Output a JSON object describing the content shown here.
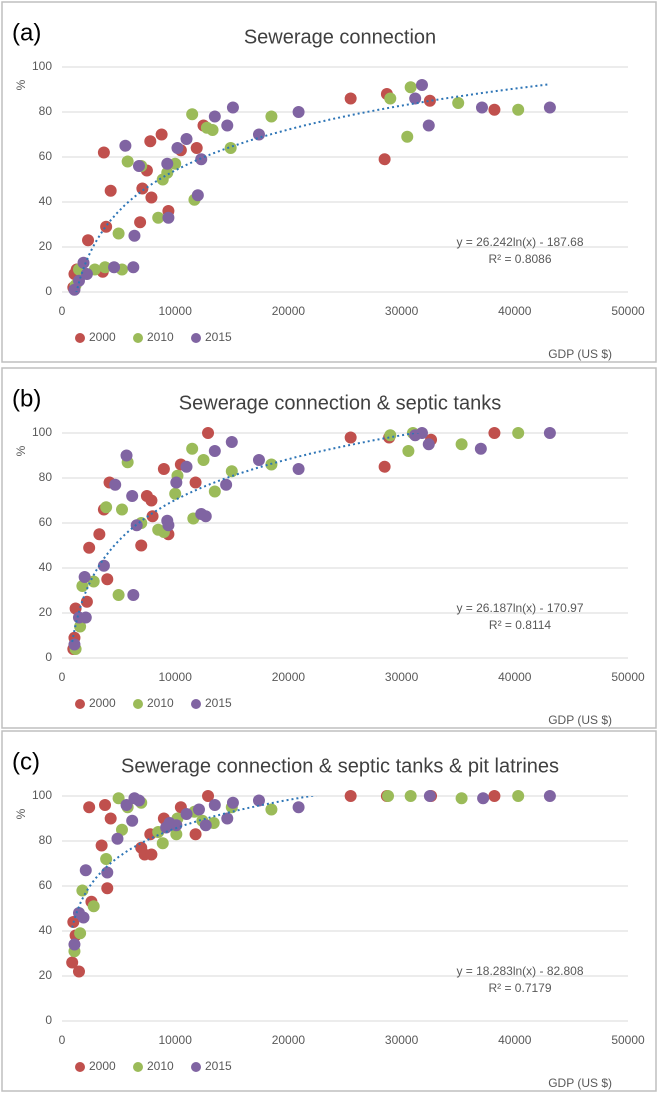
{
  "chart_data": [
    {
      "type": "scatter",
      "panel_label": "(a)",
      "title": "Sewerage connection",
      "y_label": "%",
      "x_label": "GDP (US $)",
      "xlim": [
        0,
        50000
      ],
      "xticks": [
        0,
        10000,
        20000,
        30000,
        40000,
        50000
      ],
      "ylim": [
        0,
        100
      ],
      "yticks": [
        0,
        20,
        40,
        60,
        80,
        100
      ],
      "grid": true,
      "series": [
        {
          "name": "2000",
          "color": "#c0504d",
          "x": [
            1000,
            1100,
            1300,
            2300,
            3600,
            3700,
            3900,
            4300,
            6900,
            7100,
            7500,
            7800,
            7900,
            8800,
            9400,
            10500,
            11900,
            12500,
            25500,
            28500,
            28700,
            32500,
            38200
          ],
          "values": [
            2,
            8,
            10,
            23,
            9,
            62,
            29,
            45,
            31,
            46,
            54,
            67,
            42,
            70,
            36,
            63,
            64,
            74,
            86,
            59,
            88,
            85,
            81
          ]
        },
        {
          "name": "2010",
          "color": "#9bbb59",
          "x": [
            1200,
            1500,
            2900,
            3800,
            5000,
            5300,
            5800,
            7000,
            8500,
            8900,
            9300,
            10000,
            11500,
            11700,
            12800,
            13300,
            14900,
            18500,
            29000,
            30500,
            30800,
            35000,
            40300
          ],
          "values": [
            3,
            10,
            10,
            11,
            26,
            10,
            58,
            56,
            33,
            50,
            53,
            57,
            79,
            41,
            73,
            72,
            64,
            78,
            86,
            69,
            91,
            84,
            81
          ]
        },
        {
          "name": "2015",
          "color": "#8064a2",
          "x": [
            1100,
            1500,
            1900,
            2200,
            4600,
            5600,
            6300,
            6400,
            6800,
            9300,
            9400,
            10200,
            11000,
            12000,
            12300,
            13500,
            14600,
            15100,
            17400,
            20900,
            31200,
            31800,
            32400,
            37100,
            43100
          ],
          "values": [
            1,
            5,
            13,
            8,
            11,
            65,
            11,
            25,
            56,
            57,
            33,
            64,
            68,
            43,
            59,
            78,
            74,
            82,
            70,
            80,
            86,
            92,
            74,
            82,
            82
          ]
        }
      ],
      "trendline": {
        "a": 26.242,
        "b": -187.68,
        "equation": "y = 26.242ln(x) - 187.68",
        "r2": "R² = 0.8086"
      }
    },
    {
      "type": "scatter",
      "panel_label": "(b)",
      "title": "Sewerage connection & septic tanks",
      "y_label": "%",
      "x_label": "GDP (US $)",
      "xlim": [
        0,
        50000
      ],
      "xticks": [
        0,
        10000,
        20000,
        30000,
        40000,
        50000
      ],
      "ylim": [
        0,
        100
      ],
      "yticks": [
        0,
        20,
        40,
        60,
        80,
        100
      ],
      "grid": true,
      "series": [
        {
          "name": "2000",
          "color": "#c0504d",
          "x": [
            1000,
            1100,
            1200,
            2200,
            2400,
            3300,
            3700,
            4000,
            4200,
            7000,
            7500,
            7900,
            8000,
            9000,
            9400,
            10500,
            11800,
            12900,
            25500,
            28500,
            28900,
            32600,
            38200
          ],
          "values": [
            4,
            9,
            22,
            25,
            49,
            55,
            66,
            35,
            78,
            50,
            72,
            70,
            63,
            84,
            55,
            86,
            78,
            100,
            98,
            85,
            98,
            97,
            100
          ]
        },
        {
          "name": "2010",
          "color": "#9bbb59",
          "x": [
            1200,
            1600,
            1800,
            2800,
            3900,
            5000,
            5300,
            5800,
            7000,
            8500,
            9000,
            10000,
            10200,
            11500,
            11600,
            12500,
            13500,
            15000,
            18500,
            29000,
            30600,
            31000,
            35300,
            40300
          ],
          "values": [
            4,
            14,
            32,
            34,
            67,
            28,
            66,
            87,
            60,
            57,
            56,
            73,
            81,
            93,
            62,
            88,
            74,
            83,
            86,
            99,
            92,
            100,
            95,
            100
          ]
        },
        {
          "name": "2015",
          "color": "#8064a2",
          "x": [
            1100,
            1500,
            2000,
            2100,
            3700,
            4700,
            5700,
            6200,
            6300,
            6600,
            9300,
            9400,
            10100,
            11000,
            12300,
            12700,
            13500,
            14500,
            15000,
            17400,
            20900,
            31200,
            31800,
            32400,
            37000,
            43100
          ],
          "values": [
            6,
            18,
            36,
            18,
            41,
            77,
            90,
            72,
            28,
            59,
            61,
            59,
            78,
            85,
            64,
            63,
            92,
            77,
            96,
            88,
            84,
            99,
            100,
            95,
            93,
            100
          ]
        }
      ],
      "trendline": {
        "a": 26.187,
        "b": -170.97,
        "equation": "y = 26.187ln(x) - 170.97",
        "r2": "R² = 0.8114"
      }
    },
    {
      "type": "scatter",
      "panel_label": "(c)",
      "title": "Sewerage connection & septic tanks & pit latrines",
      "y_label": "%",
      "x_label": "GDP (US $)",
      "xlim": [
        0,
        50000
      ],
      "xticks": [
        0,
        10000,
        20000,
        30000,
        40000,
        50000
      ],
      "ylim": [
        0,
        100
      ],
      "yticks": [
        0,
        20,
        40,
        60,
        80,
        100
      ],
      "grid": true,
      "series": [
        {
          "name": "2000",
          "color": "#c0504d",
          "x": [
            900,
            1000,
            1200,
            1500,
            2400,
            2600,
            3500,
            3800,
            4000,
            4300,
            7000,
            7300,
            7800,
            7900,
            9000,
            10500,
            11800,
            12900,
            25500,
            28700,
            32600,
            38200
          ],
          "values": [
            26,
            44,
            38,
            22,
            95,
            53,
            78,
            96,
            59,
            90,
            77,
            74,
            83,
            74,
            90,
            95,
            83,
            100,
            100,
            100,
            100,
            100
          ]
        },
        {
          "name": "2010",
          "color": "#9bbb59",
          "x": [
            1100,
            1600,
            1800,
            2800,
            3900,
            5000,
            5300,
            5800,
            7000,
            8500,
            8900,
            10100,
            10200,
            11700,
            12400,
            13400,
            15000,
            18500,
            28800,
            30800,
            35300,
            40300
          ],
          "values": [
            31,
            39,
            58,
            51,
            72,
            99,
            85,
            95,
            97,
            84,
            79,
            83,
            90,
            93,
            89,
            88,
            95,
            94,
            100,
            100,
            99,
            100
          ]
        },
        {
          "name": "2015",
          "color": "#8064a2",
          "x": [
            1100,
            1500,
            1900,
            2100,
            4000,
            4900,
            5700,
            6200,
            6400,
            6800,
            9200,
            9500,
            10100,
            11000,
            12100,
            12700,
            13500,
            14600,
            15100,
            17400,
            20900,
            32500,
            37200,
            43100
          ],
          "values": [
            34,
            48,
            46,
            67,
            66,
            81,
            96,
            89,
            99,
            98,
            86,
            88,
            87,
            92,
            94,
            87,
            96,
            90,
            97,
            98,
            95,
            100,
            99,
            100
          ]
        }
      ],
      "trendline": {
        "a": 18.283,
        "b": -82.808,
        "equation": "y = 18.283ln(x) - 82.808",
        "r2": "R² = 0.7179"
      }
    }
  ]
}
